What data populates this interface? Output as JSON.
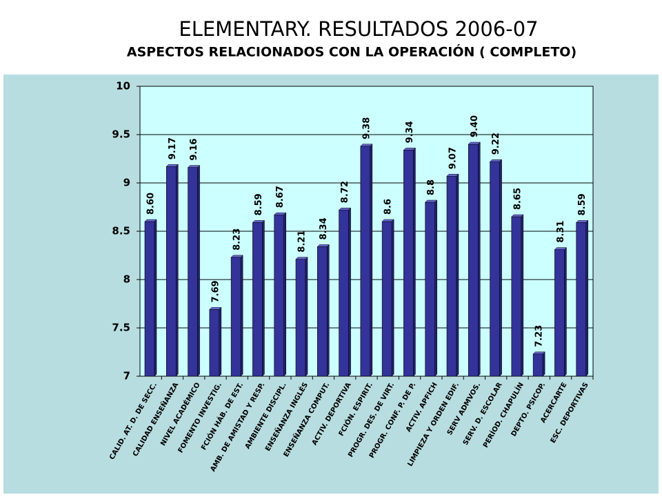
{
  "chart_data": {
    "type": "bar",
    "title": "ELEMENTARY. RESULTADOS 2006-07",
    "subtitle": "ASPECTOS RELACIONADOS CON LA OPERACIÓN ( COMPLETO)",
    "categories": [
      "CALID. AT. D. DE SECC.",
      "CALIDAD ENSEÑANZA",
      "NIVEL ACADÉMICO",
      "FOMENTO INVESTIG.",
      "FCIÓN HÁB. DE EST.",
      "AMB. DE AMISTAD Y RESP.",
      "AMBIENTE DISCIPL.",
      "ENSEÑANZA INGLÉS",
      "ENSEÑANZA COMPUT.",
      "ACTIV. DEPORTIVA",
      "FCIÓN. ESPIRIT.",
      "PROGR. DES. DE VIRT.",
      "PROGR. CONF. P. DE P.",
      "ACTIV. APFICH",
      "LIMPIEZA Y ORDEN EDIF.",
      "SERV ADMVOS.",
      "SERV. D. ESCOLAR",
      "PERÍOD. CHAPULÍN",
      "DEPTO. PSICOP.",
      "ACERCARTE",
      "ESC. DEPORTIVAS"
    ],
    "values": [
      8.6,
      9.17,
      9.16,
      7.69,
      8.23,
      8.59,
      8.67,
      8.21,
      8.34,
      8.72,
      9.38,
      8.6,
      9.34,
      8.8,
      9.07,
      9.4,
      9.22,
      8.65,
      7.23,
      8.31,
      8.59
    ],
    "value_labels": [
      "8.60",
      "9.17",
      "9.16",
      "7.69",
      "8.23",
      "8.59",
      "8.67",
      "8.21",
      "8.34",
      "8.72",
      "9.38",
      "8.6",
      "9.34",
      "8.8",
      "9.07",
      "9.40",
      "9.22",
      "8.65",
      "7.23",
      "8.31",
      "8.59"
    ],
    "color": "#333399",
    "ylim": [
      7,
      10
    ],
    "yticks": [
      7,
      7.5,
      8,
      8.5,
      9,
      9.5,
      10
    ],
    "grid": true
  }
}
